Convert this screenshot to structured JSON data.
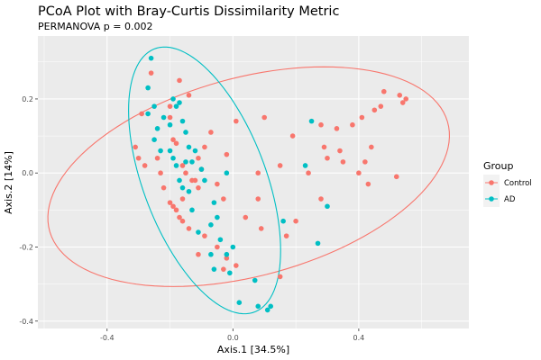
{
  "chart_data": {
    "type": "scatter",
    "title": "PCoA Plot with Bray-Curtis Dissimilarity Metric",
    "subtitle": "PERMANOVA p = 0.002",
    "xlabel": "Axis.1   [34.5%]",
    "ylabel": "Axis.2   [14%]",
    "xlim": [
      -0.62,
      0.75
    ],
    "ylim": [
      -0.42,
      0.37
    ],
    "xticks": [
      -0.4,
      0.0,
      0.4
    ],
    "yticks": [
      -0.4,
      -0.2,
      0.0,
      0.2
    ],
    "xtick_labels": [
      "-0.4",
      "0.0",
      "0.4"
    ],
    "ytick_labels": [
      "-0.4",
      "-0.2",
      "0.0",
      "0.2"
    ],
    "grid": true,
    "legend": {
      "title": "Group",
      "position": "right",
      "entries": [
        {
          "label": "Control",
          "color": "#F8766D"
        },
        {
          "label": "AD",
          "color": "#00BFC4"
        }
      ]
    },
    "series": [
      {
        "name": "Control",
        "color": "#F8766D",
        "points": [
          [
            -0.29,
            0.16
          ],
          [
            -0.31,
            0.07
          ],
          [
            -0.3,
            0.04
          ],
          [
            -0.28,
            0.02
          ],
          [
            -0.26,
            0.27
          ],
          [
            -0.24,
            0.04
          ],
          [
            -0.23,
            0.0
          ],
          [
            -0.22,
            -0.04
          ],
          [
            -0.2,
            0.18
          ],
          [
            -0.2,
            0.15
          ],
          [
            -0.19,
            0.09
          ],
          [
            -0.18,
            0.08
          ],
          [
            -0.17,
            0.25
          ],
          [
            -0.16,
            0.02
          ],
          [
            -0.15,
            0.0
          ],
          [
            -0.14,
            0.21
          ],
          [
            -0.13,
            -0.02
          ],
          [
            -0.12,
            -0.02
          ],
          [
            -0.11,
            0.04
          ],
          [
            -0.1,
            0.01
          ],
          [
            -0.2,
            -0.08
          ],
          [
            -0.19,
            -0.09
          ],
          [
            -0.18,
            -0.1
          ],
          [
            -0.17,
            -0.12
          ],
          [
            -0.16,
            -0.13
          ],
          [
            -0.16,
            -0.07
          ],
          [
            -0.11,
            -0.04
          ],
          [
            -0.11,
            -0.22
          ],
          [
            -0.09,
            0.07
          ],
          [
            -0.07,
            0.11
          ],
          [
            -0.05,
            -0.03
          ],
          [
            -0.03,
            -0.07
          ],
          [
            -0.02,
            0.05
          ],
          [
            -0.02,
            -0.23
          ],
          [
            -0.03,
            -0.26
          ],
          [
            -0.05,
            -0.2
          ],
          [
            -0.09,
            -0.17
          ],
          [
            -0.14,
            -0.15
          ],
          [
            0.01,
            -0.25
          ],
          [
            0.01,
            0.14
          ],
          [
            0.04,
            -0.12
          ],
          [
            0.08,
            0.0
          ],
          [
            0.08,
            -0.07
          ],
          [
            0.09,
            -0.15
          ],
          [
            0.1,
            0.15
          ],
          [
            0.15,
            0.02
          ],
          [
            0.15,
            -0.28
          ],
          [
            0.17,
            -0.17
          ],
          [
            0.19,
            0.1
          ],
          [
            0.2,
            -0.13
          ],
          [
            0.24,
            0.0
          ],
          [
            0.28,
            0.13
          ],
          [
            0.28,
            -0.07
          ],
          [
            0.29,
            0.07
          ],
          [
            0.3,
            0.04
          ],
          [
            0.33,
            0.12
          ],
          [
            0.34,
            0.06
          ],
          [
            0.35,
            0.03
          ],
          [
            0.38,
            0.13
          ],
          [
            0.4,
            0.0
          ],
          [
            0.41,
            0.15
          ],
          [
            0.42,
            0.03
          ],
          [
            0.43,
            -0.03
          ],
          [
            0.44,
            0.07
          ],
          [
            0.45,
            0.17
          ],
          [
            0.47,
            0.18
          ],
          [
            0.48,
            0.22
          ],
          [
            0.53,
            0.21
          ],
          [
            0.54,
            0.19
          ],
          [
            0.55,
            0.2
          ],
          [
            0.52,
            -0.01
          ]
        ]
      },
      {
        "name": "AD",
        "color": "#00BFC4",
        "points": [
          [
            -0.26,
            0.31
          ],
          [
            -0.27,
            0.23
          ],
          [
            -0.25,
            0.18
          ],
          [
            -0.27,
            0.16
          ],
          [
            -0.24,
            0.12
          ],
          [
            -0.22,
            0.15
          ],
          [
            -0.2,
            0.13
          ],
          [
            -0.19,
            0.2
          ],
          [
            -0.18,
            0.18
          ],
          [
            -0.17,
            0.19
          ],
          [
            -0.16,
            0.14
          ],
          [
            -0.15,
            0.11
          ],
          [
            -0.14,
            0.07
          ],
          [
            -0.15,
            0.03
          ],
          [
            -0.23,
            0.06
          ],
          [
            -0.25,
            0.09
          ],
          [
            -0.2,
            0.06
          ],
          [
            -0.19,
            0.04
          ],
          [
            -0.18,
            0.02
          ],
          [
            -0.17,
            -0.02
          ],
          [
            -0.16,
            -0.04
          ],
          [
            -0.13,
            0.03
          ],
          [
            -0.12,
            0.06
          ],
          [
            -0.1,
            0.01
          ],
          [
            -0.09,
            -0.02
          ],
          [
            -0.14,
            -0.05
          ],
          [
            -0.06,
            -0.08
          ],
          [
            -0.05,
            -0.12
          ],
          [
            -0.07,
            -0.14
          ],
          [
            -0.04,
            -0.18
          ],
          [
            -0.13,
            -0.1
          ],
          [
            -0.11,
            -0.16
          ],
          [
            -0.07,
            -0.22
          ],
          [
            -0.06,
            -0.26
          ],
          [
            -0.02,
            -0.22
          ],
          [
            -0.01,
            -0.27
          ],
          [
            -0.02,
            0.0
          ],
          [
            0.0,
            -0.2
          ],
          [
            0.02,
            -0.35
          ],
          [
            0.07,
            -0.29
          ],
          [
            0.08,
            -0.36
          ],
          [
            0.11,
            -0.37
          ],
          [
            0.12,
            -0.36
          ],
          [
            0.16,
            -0.13
          ],
          [
            0.23,
            0.02
          ],
          [
            0.25,
            0.14
          ],
          [
            0.27,
            -0.19
          ],
          [
            0.3,
            -0.09
          ]
        ]
      }
    ],
    "ellipses": [
      {
        "group": "Control",
        "center": [
          0.05,
          -0.01
        ],
        "rx": 0.65,
        "ry": 0.27,
        "angle_deg": 12
      },
      {
        "group": "AD",
        "center": [
          -0.09,
          -0.02
        ],
        "rx": 0.39,
        "ry": 0.19,
        "angle_deg": -64
      }
    ]
  }
}
